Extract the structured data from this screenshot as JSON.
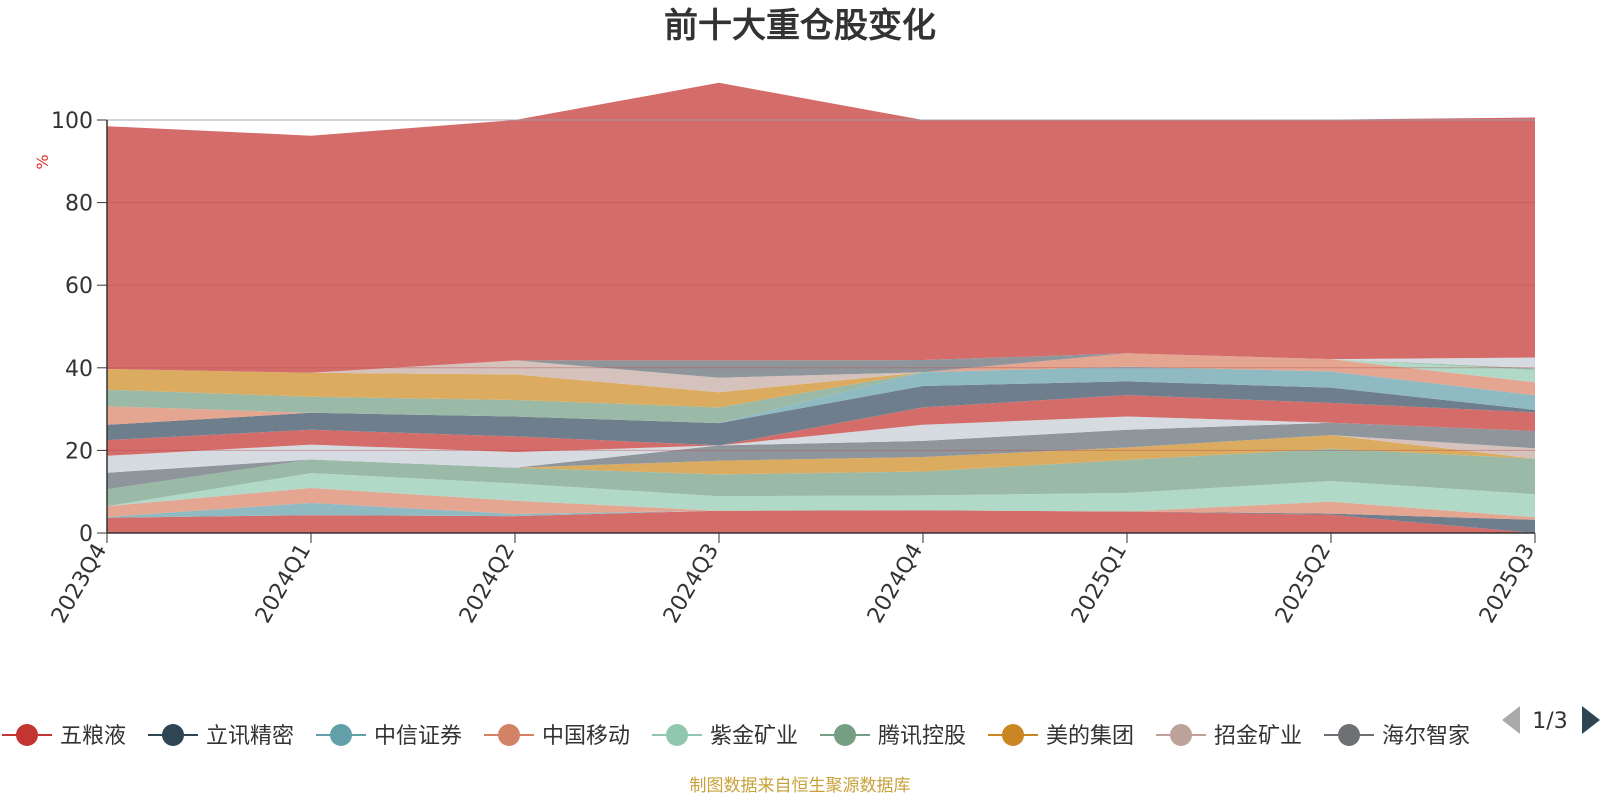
{
  "chart_data": {
    "type": "area",
    "stacked": true,
    "title": "前十大重仓股变化",
    "ylabel": "%",
    "ylim": [
      0,
      100
    ],
    "yticks": [
      0,
      20,
      40,
      60,
      80,
      100
    ],
    "grid": true,
    "legend_position": "bottom",
    "legend_page": "1/3",
    "categories": [
      "2023Q4",
      "2024Q1",
      "2024Q2",
      "2024Q3",
      "2024Q4",
      "2025Q1",
      "2025Q2",
      "2025Q3"
    ],
    "series": [
      {
        "name": "五粮液",
        "color": "#d46c6a",
        "values": [
          3.7,
          4.3,
          4.1,
          5.4,
          5.5,
          5.2,
          4.4,
          0.0
        ]
      },
      {
        "name": "立讯精密",
        "color": "#6e7e8c",
        "values": [
          0.0,
          0.0,
          0.0,
          0.0,
          0.0,
          0.0,
          0.3,
          3.2
        ]
      },
      {
        "name": "中信证券",
        "color": "#8fbac1",
        "values": [
          0.2,
          3.0,
          0.5,
          0.0,
          0.0,
          0.0,
          0.0,
          0.0
        ]
      },
      {
        "name": "中国移动",
        "color": "#e4a591",
        "values": [
          2.6,
          3.6,
          3.2,
          0.0,
          0.0,
          0.0,
          2.9,
          0.6
        ]
      },
      {
        "name": "紫金矿业",
        "color": "#b1d9c8",
        "values": [
          0.0,
          3.6,
          4.2,
          3.5,
          3.6,
          4.5,
          5.0,
          5.6
        ]
      },
      {
        "name": "腾讯控股",
        "color": "#9ab9a6",
        "values": [
          4.1,
          3.3,
          3.8,
          5.3,
          5.8,
          8.0,
          7.8,
          8.6
        ]
      },
      {
        "name": "美的集团",
        "color": "#dbab5f",
        "values": [
          0.0,
          0.0,
          0.0,
          3.3,
          3.5,
          3.0,
          3.3,
          0.0
        ]
      },
      {
        "name": "招金矿业",
        "color": "#d5c2bd",
        "values": [
          0.0,
          0.0,
          0.0,
          0.0,
          0.0,
          0.0,
          0.0,
          2.5
        ]
      },
      {
        "name": "海尔智家",
        "color": "#8e969c",
        "values": [
          4.0,
          0.0,
          0.0,
          3.7,
          3.9,
          4.3,
          3.0,
          4.2
        ]
      },
      {
        "name": "",
        "color": "#d6dbe1",
        "values": [
          4.1,
          3.6,
          3.8,
          0.0,
          3.9,
          3.2,
          0.0,
          0.0
        ]
      },
      {
        "name": "",
        "color": "#d46c6a",
        "values": [
          3.8,
          3.6,
          3.8,
          0.0,
          4.2,
          5.2,
          4.8,
          4.5
        ]
      },
      {
        "name": "",
        "color": "#6e7e8c",
        "values": [
          3.7,
          4.1,
          4.8,
          5.4,
          5.2,
          3.3,
          3.7,
          0.6
        ]
      },
      {
        "name": "",
        "color": "#8fbac1",
        "values": [
          0.0,
          0.0,
          0.0,
          0.0,
          3.3,
          3.6,
          3.9,
          3.6
        ]
      },
      {
        "name": "",
        "color": "#e4a591",
        "values": [
          4.5,
          0.0,
          0.0,
          0.0,
          0.0,
          3.2,
          3.0,
          3.1
        ]
      },
      {
        "name": "",
        "color": "#b1d9c8",
        "values": [
          0.0,
          0.0,
          0.0,
          0.0,
          0.0,
          0.0,
          0.0,
          3.0
        ]
      },
      {
        "name": "",
        "color": "#9ab9a6",
        "values": [
          4.0,
          3.9,
          4.0,
          3.8,
          0.0,
          0.0,
          0.0,
          0.4
        ]
      },
      {
        "name": "",
        "color": "#dbab5f",
        "values": [
          5.0,
          5.8,
          6.2,
          3.7,
          0.0,
          0.0,
          0.0,
          0.0
        ]
      },
      {
        "name": "",
        "color": "#d5c2bd",
        "values": [
          0.0,
          0.0,
          3.4,
          3.5,
          0.0,
          0.0,
          0.0,
          0.0
        ]
      },
      {
        "name": "",
        "color": "#8e969c",
        "values": [
          0.0,
          0.0,
          0.0,
          4.2,
          3.0,
          0.0,
          0.0,
          0.0
        ]
      },
      {
        "name": "",
        "color": "#d6dbe1",
        "values": [
          0.0,
          0.0,
          0.0,
          0.0,
          0.0,
          0.0,
          0.0,
          2.6
        ]
      },
      {
        "name": "",
        "color": "#d46c6a",
        "values": [
          58.8,
          57.4,
          58.2,
          67.2,
          58.1,
          56.5,
          58.0,
          58.1
        ]
      }
    ]
  },
  "legend": {
    "items": [
      {
        "name": "五粮液",
        "color": "#c23531"
      },
      {
        "name": "立讯精密",
        "color": "#2f4554"
      },
      {
        "name": "中信证券",
        "color": "#61a0a8"
      },
      {
        "name": "中国移动",
        "color": "#d48265"
      },
      {
        "name": "紫金矿业",
        "color": "#91c7ae"
      },
      {
        "name": "腾讯控股",
        "color": "#749f83"
      },
      {
        "name": "美的集团",
        "color": "#ca8622"
      },
      {
        "name": "招金矿业",
        "color": "#bda29a"
      },
      {
        "name": "海尔智家",
        "color": "#6e7074"
      }
    ],
    "page_label": "1/3"
  },
  "source_note": "制图数据来自恒生聚源数据库"
}
